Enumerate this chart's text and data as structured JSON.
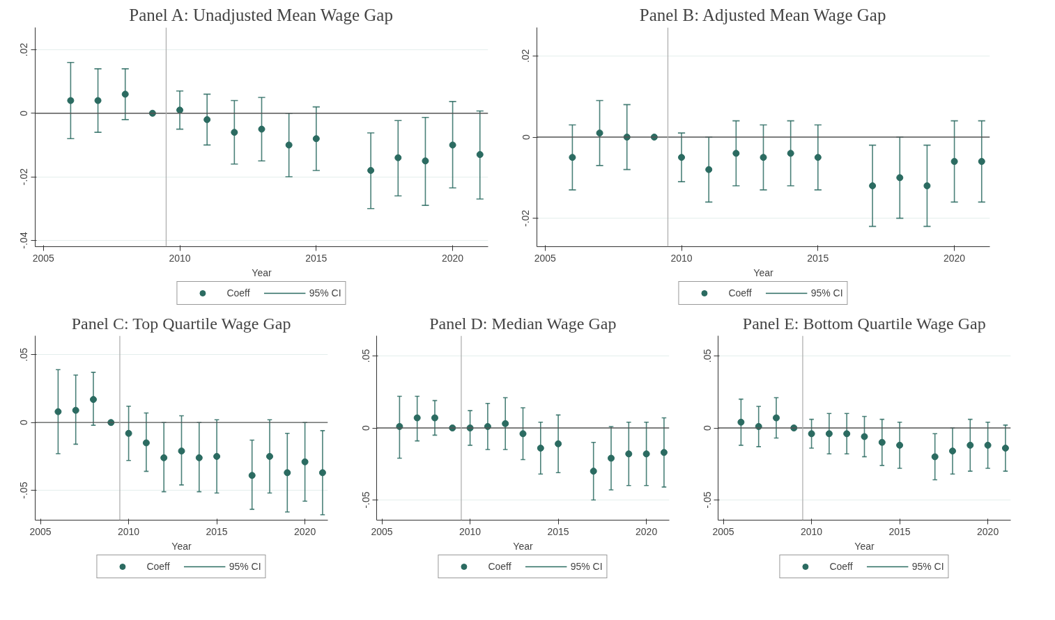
{
  "chart_data": [
    {
      "type": "scatter",
      "title": "Panel A: Unadjusted Mean Wage Gap",
      "xlabel": "Year",
      "x": [
        2006,
        2007,
        2008,
        2009,
        2010,
        2011,
        2012,
        2013,
        2014,
        2015,
        2017,
        2018,
        2019,
        2020,
        2021
      ],
      "series": [
        {
          "name": "Coeff",
          "color": "#2b6b61",
          "values": [
            0.004,
            0.004,
            0.006,
            0,
            0.001,
            -0.002,
            -0.006,
            -0.005,
            -0.01,
            -0.008,
            -0.018,
            -0.014,
            -0.015,
            -0.01,
            -0.013
          ],
          "errors": [
            [
              -0.008,
              0.016
            ],
            [
              -0.006,
              0.014
            ],
            [
              -0.002,
              0.014
            ],
            null,
            [
              -0.005,
              0.007
            ],
            [
              -0.01,
              0.006
            ],
            [
              -0.016,
              0.004
            ],
            [
              -0.015,
              0.005
            ],
            [
              -0.02,
              0.0
            ],
            [
              -0.018,
              0.002
            ],
            [
              -0.03,
              -0.0062
            ],
            [
              -0.026,
              -0.0023
            ],
            [
              -0.029,
              -0.0013
            ],
            [
              -0.0235,
              0.0037
            ],
            [
              -0.027,
              0.0007
            ]
          ]
        }
      ],
      "xlim": [
        2004.7,
        2021.3
      ],
      "xticks": [
        2005,
        2010,
        2015,
        2020
      ],
      "ylim": [
        -0.042,
        0.027
      ],
      "yticks": [
        {
          "value": -0.04,
          "label": "-.04"
        },
        {
          "value": -0.02,
          "label": "-.02"
        },
        {
          "value": 0,
          "label": "0"
        },
        {
          "value": 0.02,
          "label": ".02"
        }
      ],
      "ref_lines": [
        {
          "axis": "y",
          "value": 0,
          "color": "#555555"
        },
        {
          "axis": "x",
          "value": 2009.5,
          "color": "#b0b0b0"
        }
      ],
      "annotations": [
        "95% CI"
      ],
      "grid": "y",
      "legend": "bottom",
      "marker": "circle"
    },
    {
      "type": "scatter",
      "title": "Panel B: Adjusted Mean Wage Gap",
      "xlabel": "Year",
      "x": [
        2006,
        2007,
        2008,
        2009,
        2010,
        2011,
        2012,
        2013,
        2014,
        2015,
        2017,
        2018,
        2019,
        2020,
        2021
      ],
      "series": [
        {
          "name": "Coeff",
          "color": "#2b6b61",
          "values": [
            -0.005,
            0.001,
            0,
            0,
            -0.005,
            -0.008,
            -0.004,
            -0.005,
            -0.004,
            -0.005,
            -0.012,
            -0.01,
            -0.012,
            -0.006,
            -0.006
          ],
          "errors": [
            [
              -0.013,
              0.003
            ],
            [
              -0.007,
              0.009
            ],
            [
              -0.008,
              0.008
            ],
            null,
            [
              -0.011,
              0.001
            ],
            [
              -0.016,
              0.0
            ],
            [
              -0.012,
              0.004
            ],
            [
              -0.013,
              0.003
            ],
            [
              -0.012,
              0.004
            ],
            [
              -0.013,
              0.003
            ],
            [
              -0.022,
              -0.002
            ],
            [
              -0.02,
              0.0
            ],
            [
              -0.022,
              -0.002
            ],
            [
              -0.016,
              0.004
            ],
            [
              -0.016,
              0.004
            ]
          ]
        }
      ],
      "xlim": [
        2004.7,
        2021.3
      ],
      "xticks": [
        2005,
        2010,
        2015,
        2020
      ],
      "ylim": [
        -0.027,
        0.027
      ],
      "yticks": [
        {
          "value": -0.02,
          "label": "-.02"
        },
        {
          "value": 0,
          "label": "0"
        },
        {
          "value": 0.02,
          "label": ".02"
        }
      ],
      "ref_lines": [
        {
          "axis": "y",
          "value": 0,
          "color": "#555555"
        },
        {
          "axis": "x",
          "value": 2009.5,
          "color": "#b0b0b0"
        }
      ],
      "annotations": [
        "95% CI"
      ],
      "grid": "y",
      "legend": "bottom",
      "marker": "circle"
    },
    {
      "type": "scatter",
      "title": "Panel C: Top Quartile Wage Gap",
      "xlabel": "Year",
      "x": [
        2006,
        2007,
        2008,
        2009,
        2010,
        2011,
        2012,
        2013,
        2014,
        2015,
        2017,
        2018,
        2019,
        2020,
        2021
      ],
      "series": [
        {
          "name": "Coeff",
          "color": "#2b6b61",
          "values": [
            0.008,
            0.009,
            0.017,
            0,
            -0.008,
            -0.015,
            -0.026,
            -0.021,
            -0.026,
            -0.025,
            -0.039,
            -0.025,
            -0.037,
            -0.029,
            -0.037
          ],
          "errors": [
            [
              -0.023,
              0.039
            ],
            [
              -0.016,
              0.035
            ],
            [
              -0.002,
              0.037
            ],
            null,
            [
              -0.028,
              0.012
            ],
            [
              -0.036,
              0.007
            ],
            [
              -0.051,
              0.0
            ],
            [
              -0.046,
              0.005
            ],
            [
              -0.051,
              0.0
            ],
            [
              -0.052,
              0.002
            ],
            [
              -0.064,
              -0.013
            ],
            [
              -0.052,
              0.002
            ],
            [
              -0.066,
              -0.008
            ],
            [
              -0.058,
              0.0
            ],
            [
              -0.068,
              -0.006
            ]
          ]
        }
      ],
      "xlim": [
        2004.7,
        2021.3
      ],
      "xticks": [
        2005,
        2010,
        2015,
        2020
      ],
      "ylim": [
        -0.072,
        0.064
      ],
      "yticks": [
        {
          "value": -0.05,
          "label": "-.05"
        },
        0,
        {
          "value": 0.05,
          "label": ".05"
        }
      ],
      "ref_lines": [
        {
          "axis": "y",
          "value": 0,
          "color": "#555555"
        },
        {
          "axis": "x",
          "value": 2009.5,
          "color": "#b0b0b0"
        }
      ],
      "annotations": [
        "95% CI"
      ],
      "grid": "y",
      "legend": "bottom",
      "marker": "circle"
    },
    {
      "type": "scatter",
      "title": "Panel D: Median Wage Gap",
      "xlabel": "Year",
      "x": [
        2006,
        2007,
        2008,
        2009,
        2010,
        2011,
        2012,
        2013,
        2014,
        2015,
        2017,
        2018,
        2019,
        2020,
        2021
      ],
      "series": [
        {
          "name": "Coeff",
          "color": "#2b6b61",
          "values": [
            0.001,
            0.007,
            0.007,
            0,
            0,
            0.001,
            0.003,
            -0.004,
            -0.014,
            -0.011,
            -0.03,
            -0.021,
            -0.018,
            -0.018,
            -0.017
          ],
          "errors": [
            [
              -0.021,
              0.022
            ],
            [
              -0.009,
              0.022
            ],
            [
              -0.005,
              0.019
            ],
            null,
            [
              -0.012,
              0.012
            ],
            [
              -0.015,
              0.017
            ],
            [
              -0.015,
              0.021
            ],
            [
              -0.022,
              0.014
            ],
            [
              -0.032,
              0.004
            ],
            [
              -0.031,
              0.009
            ],
            [
              -0.05,
              -0.01
            ],
            [
              -0.043,
              0.001
            ],
            [
              -0.04,
              0.004
            ],
            [
              -0.04,
              0.004
            ],
            [
              -0.041,
              0.007
            ]
          ]
        }
      ],
      "xlim": [
        2004.7,
        2021.3
      ],
      "xticks": [
        2005,
        2010,
        2015,
        2020
      ],
      "ylim": [
        -0.064,
        0.064
      ],
      "yticks": [
        {
          "value": -0.05,
          "label": "-.05"
        },
        0,
        {
          "value": 0.05,
          "label": ".05"
        }
      ],
      "ref_lines": [
        {
          "axis": "y",
          "value": 0,
          "color": "#555555"
        },
        {
          "axis": "x",
          "value": 2009.5,
          "color": "#b0b0b0"
        }
      ],
      "annotations": [
        "95% CI"
      ],
      "grid": "y",
      "legend": "bottom",
      "marker": "circle"
    },
    {
      "type": "scatter",
      "title": "Panel E: Bottom Quartile Wage Gap",
      "xlabel": "Year",
      "x": [
        2006,
        2007,
        2008,
        2009,
        2010,
        2011,
        2012,
        2013,
        2014,
        2015,
        2017,
        2018,
        2019,
        2020,
        2021
      ],
      "series": [
        {
          "name": "Coeff",
          "color": "#2b6b61",
          "values": [
            0.004,
            0.001,
            0.007,
            0,
            -0.004,
            -0.004,
            -0.004,
            -0.006,
            -0.01,
            -0.012,
            -0.02,
            -0.016,
            -0.012,
            -0.012,
            -0.014
          ],
          "errors": [
            [
              -0.012,
              0.02
            ],
            [
              -0.013,
              0.015
            ],
            [
              -0.007,
              0.021
            ],
            null,
            [
              -0.014,
              0.006
            ],
            [
              -0.018,
              0.01
            ],
            [
              -0.018,
              0.01
            ],
            [
              -0.02,
              0.008
            ],
            [
              -0.026,
              0.006
            ],
            [
              -0.028,
              0.004
            ],
            [
              -0.036,
              -0.004
            ],
            [
              -0.032,
              0.0
            ],
            [
              -0.03,
              0.006
            ],
            [
              -0.028,
              0.004
            ],
            [
              -0.03,
              0.002
            ]
          ]
        }
      ],
      "xlim": [
        2004.7,
        2021.3
      ],
      "xticks": [
        2005,
        2010,
        2015,
        2020
      ],
      "ylim": [
        -0.064,
        0.064
      ],
      "yticks": [
        {
          "value": -0.05,
          "label": "-.05"
        },
        0,
        {
          "value": 0.05,
          "label": ".05"
        }
      ],
      "ref_lines": [
        {
          "axis": "y",
          "value": 0,
          "color": "#555555"
        },
        {
          "axis": "x",
          "value": 2009.5,
          "color": "#b0b0b0"
        }
      ],
      "annotations": [
        "95% CI"
      ],
      "grid": "y",
      "legend": "bottom",
      "marker": "circle"
    }
  ]
}
